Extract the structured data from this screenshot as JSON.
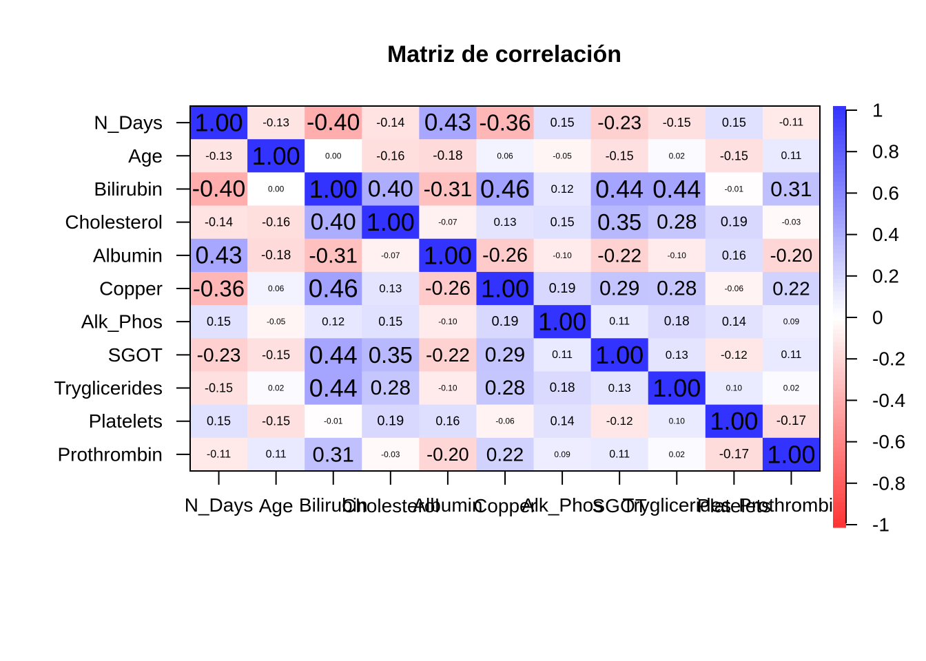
{
  "chart_data": {
    "type": "heatmap",
    "title": "Matriz de correlación",
    "variables": [
      "N_Days",
      "Age",
      "Bilirubin",
      "Cholesterol",
      "Albumin",
      "Copper",
      "Alk_Phos",
      "SGOT",
      "Tryglicerides",
      "Platelets",
      "Prothrombin"
    ],
    "values": [
      [
        1.0,
        -0.13,
        -0.4,
        -0.14,
        0.43,
        -0.36,
        0.15,
        -0.23,
        -0.15,
        0.15,
        -0.11
      ],
      [
        -0.13,
        1.0,
        0.0,
        -0.16,
        -0.18,
        0.06,
        -0.05,
        -0.15,
        0.02,
        -0.15,
        0.11
      ],
      [
        -0.4,
        0.0,
        1.0,
        0.4,
        -0.31,
        0.46,
        0.12,
        0.44,
        0.44,
        -0.01,
        0.31
      ],
      [
        -0.14,
        -0.16,
        0.4,
        1.0,
        -0.07,
        0.13,
        0.15,
        0.35,
        0.28,
        0.19,
        -0.03
      ],
      [
        0.43,
        -0.18,
        -0.31,
        -0.07,
        1.0,
        -0.26,
        -0.1,
        -0.22,
        -0.1,
        0.16,
        -0.2
      ],
      [
        -0.36,
        0.06,
        0.46,
        0.13,
        -0.26,
        1.0,
        0.19,
        0.29,
        0.28,
        -0.06,
        0.22
      ],
      [
        0.15,
        -0.05,
        0.12,
        0.15,
        -0.1,
        0.19,
        1.0,
        0.11,
        0.18,
        0.14,
        0.09
      ],
      [
        -0.23,
        -0.15,
        0.44,
        0.35,
        -0.22,
        0.29,
        0.11,
        1.0,
        0.13,
        -0.12,
        0.11
      ],
      [
        -0.15,
        0.02,
        0.44,
        0.28,
        -0.1,
        0.28,
        0.18,
        0.13,
        1.0,
        0.1,
        0.02
      ],
      [
        0.15,
        -0.15,
        -0.01,
        0.19,
        0.16,
        -0.06,
        0.14,
        -0.12,
        0.1,
        1.0,
        -0.17
      ],
      [
        -0.11,
        0.11,
        0.31,
        -0.03,
        -0.2,
        0.22,
        0.09,
        0.11,
        0.02,
        -0.17,
        1.0
      ]
    ],
    "colorbar": {
      "range": [
        -1,
        1
      ],
      "ticks": [
        "1",
        "0.8",
        "0.6",
        "0.4",
        "0.2",
        "0",
        "-0.2",
        "-0.4",
        "-0.6",
        "-0.8",
        "-1"
      ],
      "colors": {
        "negative": "#ff3333",
        "zero": "#ffffff",
        "positive": "#3333ff"
      }
    },
    "grid": false,
    "legend_position": "right"
  }
}
